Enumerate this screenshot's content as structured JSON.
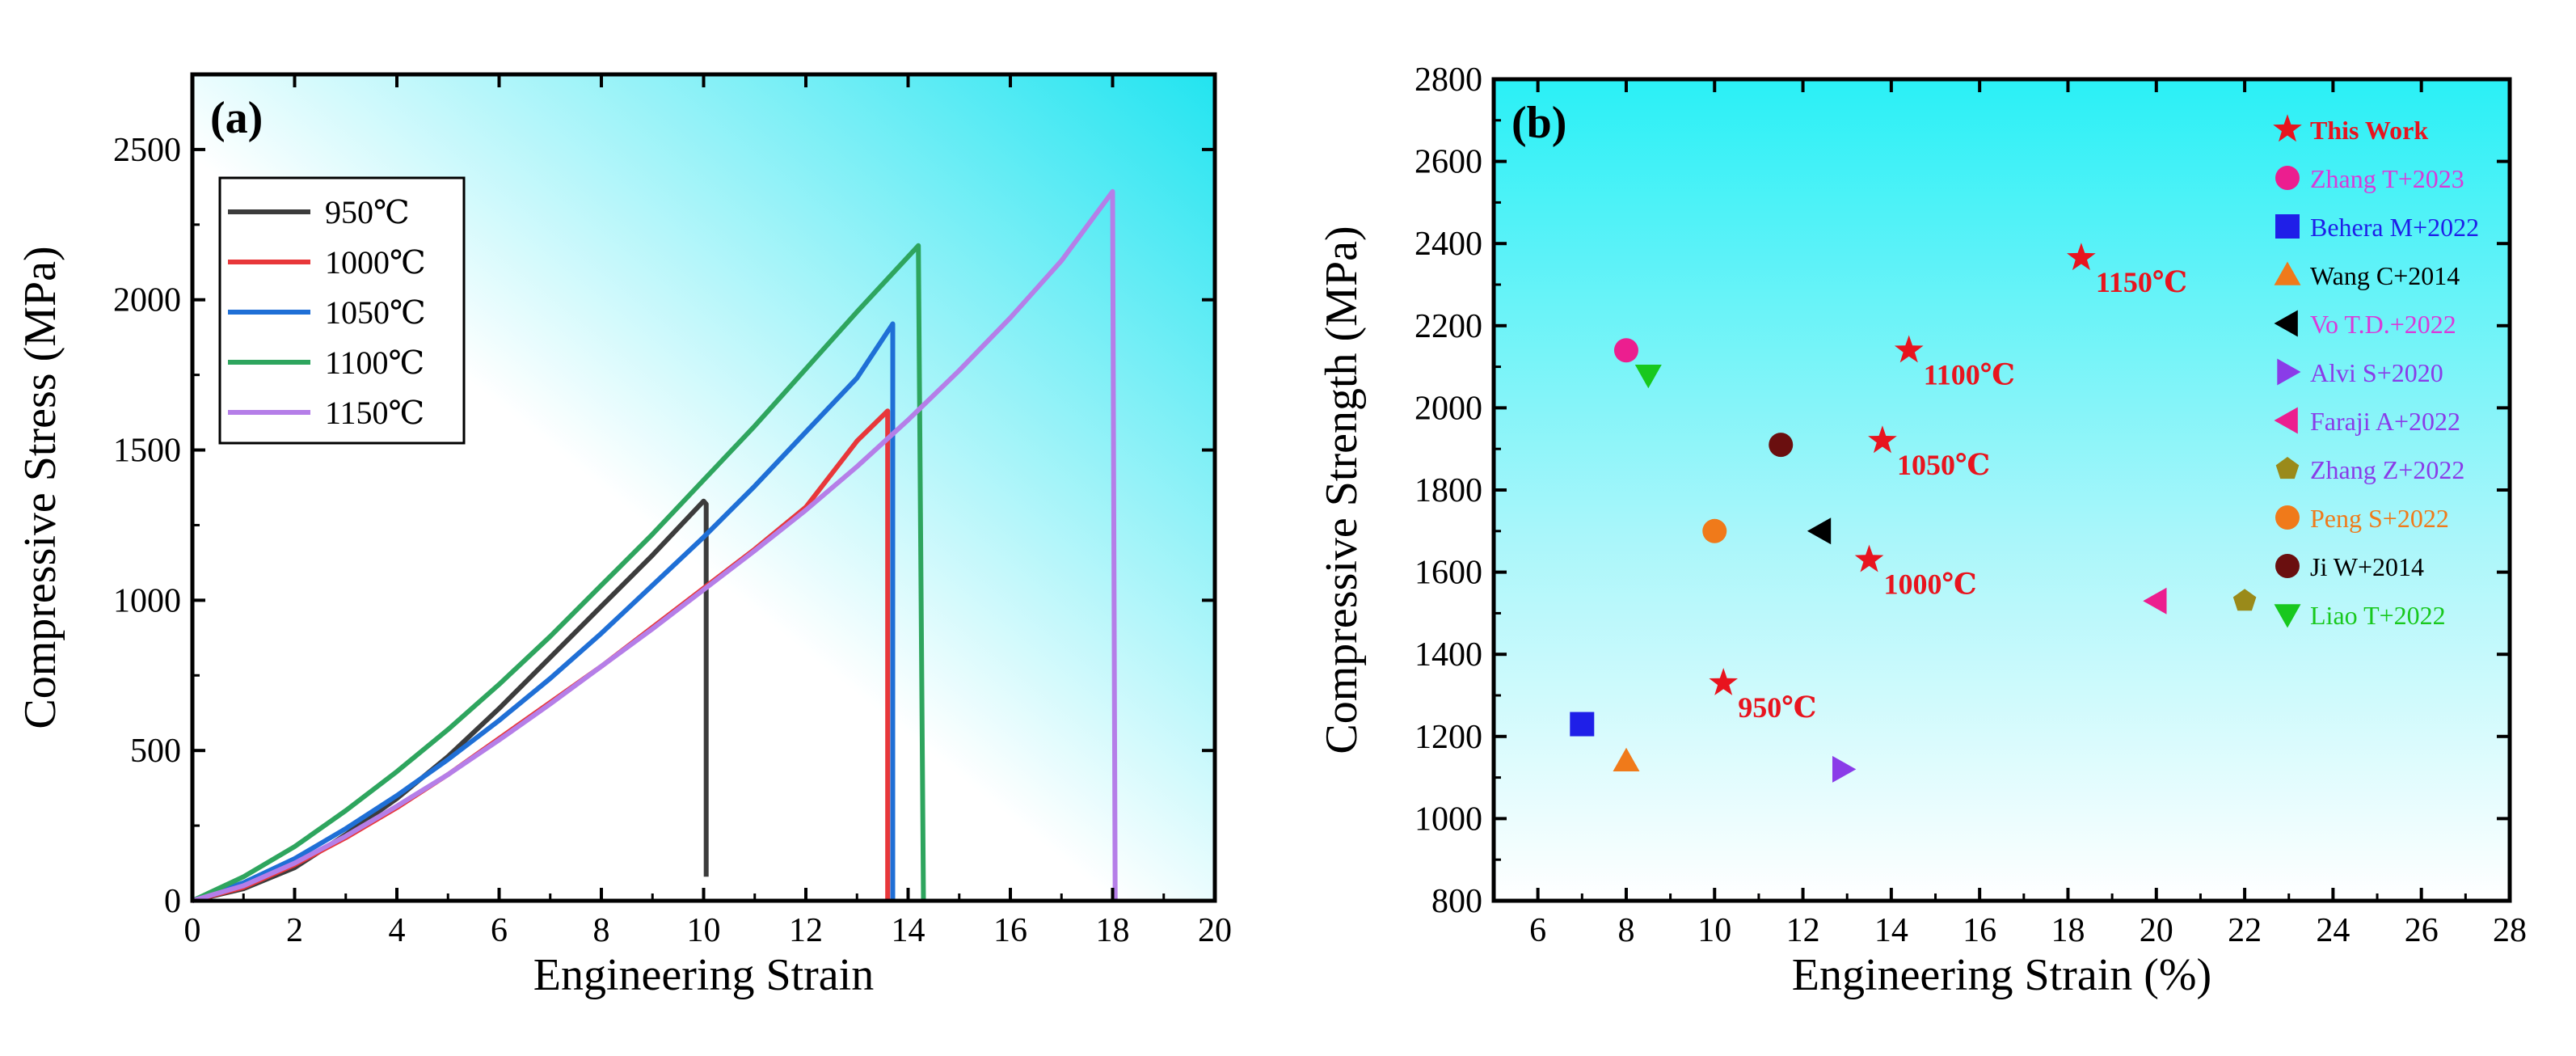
{
  "chart_data": [
    {
      "panel": "(a)",
      "type": "line",
      "xlabel": "Engineering Strain",
      "ylabel": "Compressive Stress (MPa)",
      "xlim": [
        0,
        20
      ],
      "ylim": [
        0,
        2750
      ],
      "xticks": [
        0,
        2,
        4,
        6,
        8,
        10,
        12,
        14,
        16,
        18,
        20
      ],
      "yticks": [
        0,
        500,
        1000,
        1500,
        2000,
        2500
      ],
      "legend_position": "top-left",
      "series": [
        {
          "name": "950℃",
          "color": "#3c3c3c",
          "x": [
            0,
            1,
            2,
            3,
            4,
            5,
            6,
            7,
            8,
            9,
            10,
            10.05,
            10.05
          ],
          "y": [
            0,
            40,
            110,
            220,
            340,
            480,
            640,
            810,
            980,
            1150,
            1330,
            1320,
            80
          ]
        },
        {
          "name": "1000℃",
          "color": "#e8373a",
          "x": [
            0,
            1,
            2,
            3,
            4,
            5,
            6,
            7,
            8,
            9,
            10,
            11,
            12,
            13,
            13.6,
            13.6
          ],
          "y": [
            0,
            45,
            120,
            210,
            310,
            420,
            540,
            660,
            780,
            910,
            1040,
            1170,
            1310,
            1530,
            1630,
            0
          ]
        },
        {
          "name": "1050℃",
          "color": "#1f6fd6",
          "x": [
            0,
            1,
            2,
            3,
            4,
            5,
            6,
            7,
            8,
            9,
            10,
            11,
            12,
            13,
            13.7,
            13.7
          ],
          "y": [
            0,
            60,
            140,
            240,
            350,
            470,
            600,
            740,
            890,
            1050,
            1210,
            1380,
            1560,
            1740,
            1920,
            0
          ]
        },
        {
          "name": "1100℃",
          "color": "#2ea55e",
          "x": [
            0,
            1,
            2,
            3,
            4,
            5,
            6,
            7,
            8,
            9,
            10,
            11,
            12,
            13,
            14.2,
            14.3
          ],
          "y": [
            0,
            80,
            180,
            300,
            430,
            570,
            720,
            880,
            1050,
            1220,
            1400,
            1580,
            1770,
            1960,
            2180,
            0
          ]
        },
        {
          "name": "1150℃",
          "color": "#b57ee8",
          "x": [
            0,
            1,
            2,
            3,
            4,
            5,
            6,
            7,
            8,
            9,
            10,
            11,
            12,
            13,
            14,
            15,
            16,
            17,
            18,
            18.05
          ],
          "y": [
            0,
            50,
            125,
            215,
            315,
            420,
            535,
            655,
            780,
            905,
            1035,
            1165,
            1300,
            1445,
            1600,
            1765,
            1940,
            2130,
            2360,
            0
          ]
        }
      ]
    },
    {
      "panel": "(b)",
      "type": "scatter",
      "xlabel": "Engineering Strain (%)",
      "ylabel": "Compressive Strength (MPa)",
      "xlim": [
        5,
        28
      ],
      "ylim": [
        800,
        2800
      ],
      "xticks": [
        6,
        8,
        10,
        12,
        14,
        16,
        18,
        20,
        22,
        24,
        26,
        28
      ],
      "yticks": [
        800,
        1000,
        1200,
        1400,
        1600,
        1800,
        2000,
        2200,
        2400,
        2600,
        2800
      ],
      "legend_position": "right",
      "series": [
        {
          "name": "This Work",
          "marker": "star",
          "color": "#e8141e",
          "bold": true,
          "points": [
            {
              "x": 10.2,
              "y": 1330,
              "label": "950℃"
            },
            {
              "x": 13.5,
              "y": 1630,
              "label": "1000℃"
            },
            {
              "x": 13.8,
              "y": 1920,
              "label": "1050℃"
            },
            {
              "x": 14.4,
              "y": 2140,
              "label": "1100℃"
            },
            {
              "x": 18.3,
              "y": 2365,
              "label": "1150℃"
            }
          ]
        },
        {
          "name": "Zhang T+2023",
          "marker": "circle",
          "color": "#ec1e8f",
          "points": [
            {
              "x": 8.0,
              "y": 2140
            }
          ]
        },
        {
          "name": "Behera M+2022",
          "marker": "square",
          "color": "#1f1fe8",
          "points": [
            {
              "x": 7.0,
              "y": 1230
            }
          ]
        },
        {
          "name": "Wang C+2014",
          "marker": "triangle-up",
          "color": "#f07a1a",
          "points": [
            {
              "x": 8.0,
              "y": 1140
            }
          ]
        },
        {
          "name": "Vo T.D.+2022",
          "marker": "triangle-left",
          "color": "#000000",
          "points": [
            {
              "x": 12.4,
              "y": 1700
            }
          ]
        },
        {
          "name": "Alvi S+2020",
          "marker": "triangle-right",
          "color": "#8a3ce8",
          "points": [
            {
              "x": 12.9,
              "y": 1120
            }
          ]
        },
        {
          "name": "Faraji A+2022",
          "marker": "triangle-left",
          "color": "#ec1e8f",
          "points": [
            {
              "x": 20.0,
              "y": 1530
            }
          ]
        },
        {
          "name": "Zhang Z+2022",
          "marker": "pentagon",
          "color": "#9a8a1a",
          "points": [
            {
              "x": 22.0,
              "y": 1530
            }
          ]
        },
        {
          "name": "Peng S+2022",
          "marker": "circle",
          "color": "#f07a1a",
          "points": [
            {
              "x": 10.0,
              "y": 1700
            }
          ]
        },
        {
          "name": "Ji W+2014",
          "marker": "circle",
          "color": "#6a0f0f",
          "points": [
            {
              "x": 11.5,
              "y": 1910
            }
          ]
        },
        {
          "name": "Liao T+2022",
          "marker": "triangle-down",
          "color": "#18c81e",
          "points": [
            {
              "x": 8.5,
              "y": 2080
            }
          ]
        }
      ],
      "legend_text_colors": [
        "#e8141e",
        "#d93ad9",
        "#1f1fe8",
        "#000000",
        "#d93ad9",
        "#8a3ce8",
        "#8a3ce8",
        "#8a3ce8",
        "#f07a1a",
        "#000000",
        "#18c81e"
      ]
    }
  ]
}
